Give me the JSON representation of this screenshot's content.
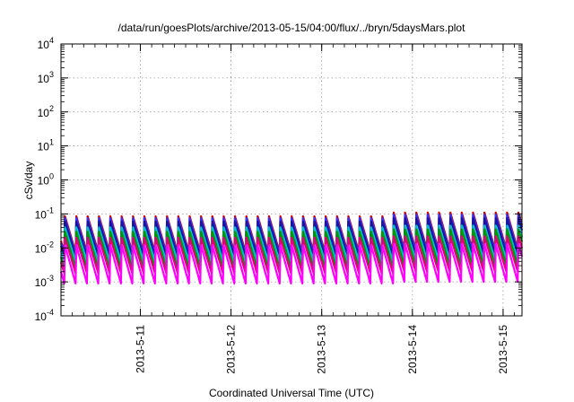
{
  "chart_data": {
    "type": "line",
    "title": "/data/run/goesPlots/archive/2013-05-15/04:00/flux/../bryn/5daysMars.plot",
    "xlabel": "Coordinated Universal Time (UTC)",
    "ylabel": "cSv/day",
    "yscale": "log",
    "ylim": [
      0.0001,
      10000
    ],
    "xlim": [
      "2013-05-10T03:00",
      "2013-05-15T05:00"
    ],
    "grid": true,
    "legend": "none",
    "y_ticks": [
      {
        "value": 0.0001,
        "base": "10",
        "exp": "-4"
      },
      {
        "value": 0.001,
        "base": "10",
        "exp": "-3"
      },
      {
        "value": 0.01,
        "base": "10",
        "exp": "-2"
      },
      {
        "value": 0.1,
        "base": "10",
        "exp": "-1"
      },
      {
        "value": 1,
        "base": "10",
        "exp": "0"
      },
      {
        "value": 10,
        "base": "10",
        "exp": "1"
      },
      {
        "value": 100,
        "base": "10",
        "exp": "2"
      },
      {
        "value": 1000,
        "base": "10",
        "exp": "3"
      },
      {
        "value": 10000,
        "base": "10",
        "exp": "4"
      }
    ],
    "x_ticks": [
      {
        "value": "2013-05-11T00:00",
        "label": "2013-5-11"
      },
      {
        "value": "2013-05-12T00:00",
        "label": "2013-5-12"
      },
      {
        "value": "2013-05-13T00:00",
        "label": "2013-5-13"
      },
      {
        "value": "2013-05-14T00:00",
        "label": "2013-5-14"
      },
      {
        "value": "2013-05-15T00:00",
        "label": "2013-5-15"
      }
    ],
    "x_step_hours": 3,
    "sawtooth_period_hours": 3,
    "series": [
      {
        "color": "#d40000",
        "peak": 0.085,
        "trough": 0.0075,
        "peak_late": 0.11,
        "trough_late": 0.009
      },
      {
        "color": "#3232ff",
        "peak": 0.075,
        "trough": 0.0065,
        "peak_late": 0.095,
        "trough_late": 0.008
      },
      {
        "color": "#1515a0",
        "peak": 0.06,
        "trough": 0.0055,
        "peak_late": 0.075,
        "trough_late": 0.0065
      },
      {
        "color": "#00c0d0",
        "peak": 0.04,
        "trough": 0.004,
        "peak_late": 0.045,
        "trough_late": 0.0045
      },
      {
        "color": "#009900",
        "peak": 0.03,
        "trough": 0.0025,
        "peak_late": 0.035,
        "trough_late": 0.003
      },
      {
        "color": "#e4007c",
        "peak": 0.02,
        "trough": 0.0018,
        "peak_late": 0.022,
        "trough_late": 0.002
      },
      {
        "color": "#ff00ff",
        "peak": 0.012,
        "trough": 0.0009,
        "peak_late": 0.013,
        "trough_late": 0.001
      }
    ]
  }
}
